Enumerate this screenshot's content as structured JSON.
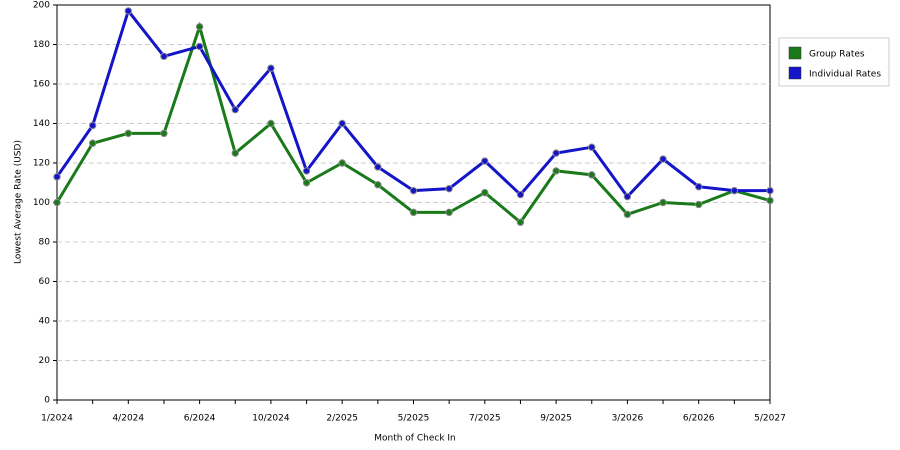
{
  "chart_data": {
    "type": "line",
    "x_label": "Month of Check In",
    "y_label": "Lowest Average Rate (USD)",
    "categories": [
      "1/2024",
      null,
      "4/2024",
      null,
      "6/2024",
      null,
      "10/2024",
      null,
      "2/2025",
      null,
      "5/2025",
      null,
      "7/2025",
      null,
      "9/2025",
      null,
      "3/2026",
      null,
      "6/2026",
      null,
      "5/2027"
    ],
    "series": [
      {
        "name": "Group Rates",
        "color": "#1a7a1a",
        "values": [
          100,
          130,
          135,
          135,
          189,
          125,
          140,
          110,
          120,
          109,
          95,
          95,
          105,
          90,
          116,
          114,
          94,
          100,
          99,
          106,
          101
        ]
      },
      {
        "name": "Individual Rates",
        "color": "#1414c8",
        "values": [
          113,
          139,
          197,
          174,
          179,
          147,
          168,
          116,
          140,
          118,
          106,
          107,
          121,
          104,
          125,
          128,
          103,
          122,
          108,
          106,
          106
        ]
      }
    ],
    "ylim": [
      0,
      200
    ],
    "yticks": [
      0,
      20,
      40,
      60,
      80,
      100,
      120,
      140,
      160,
      180,
      200
    ],
    "grid": true,
    "legend": "right"
  }
}
